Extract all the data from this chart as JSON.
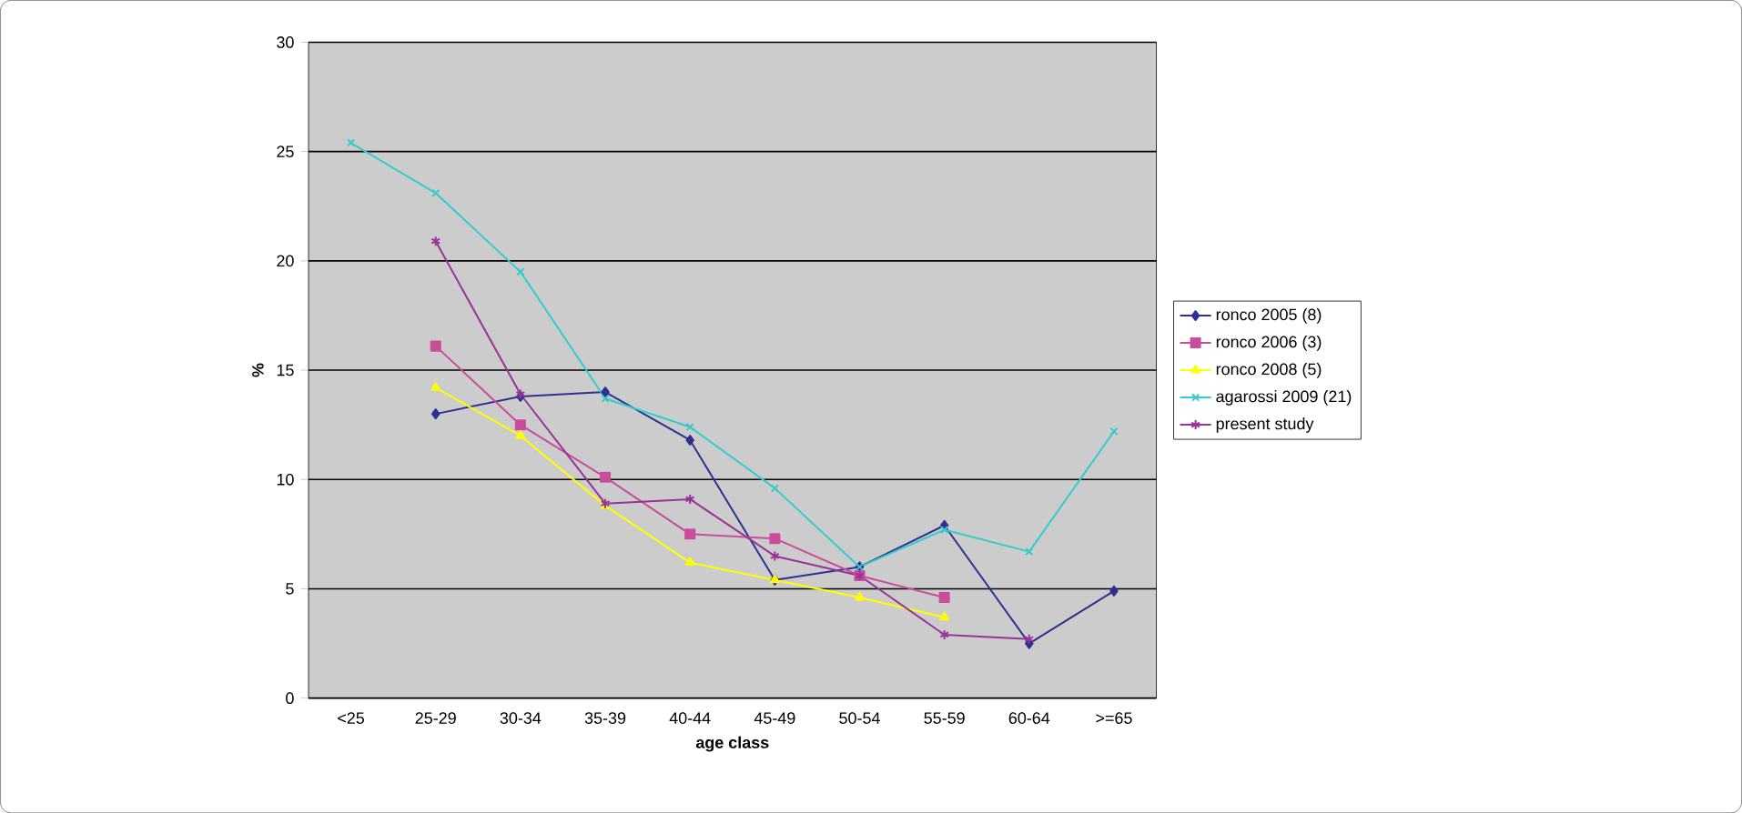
{
  "chart_data": {
    "type": "line",
    "xlabel": "age class",
    "ylabel": "%",
    "categories": [
      "<25",
      "25-29",
      "30-34",
      "35-39",
      "40-44",
      "45-49",
      "50-54",
      "55-59",
      "60-64",
      ">=65"
    ],
    "ylim": [
      0,
      30
    ],
    "yticks": [
      0,
      5,
      10,
      15,
      20,
      25,
      30
    ],
    "grid": "y",
    "legend": "right",
    "series": [
      {
        "name": "ronco 2005 (8)",
        "color": "#2e3192",
        "marker": "diamond",
        "values": [
          null,
          13.0,
          13.8,
          14.0,
          11.8,
          5.4,
          6.0,
          7.9,
          2.5,
          4.9
        ]
      },
      {
        "name": "ronco 2006 (3)",
        "color": "#cc4c9c",
        "marker": "square",
        "values": [
          null,
          16.1,
          12.5,
          10.1,
          7.5,
          7.3,
          5.6,
          4.6,
          null,
          null
        ]
      },
      {
        "name": "ronco 2008 (5)",
        "color": "#ffff00",
        "marker": "triangle",
        "values": [
          null,
          14.2,
          12.0,
          8.8,
          6.2,
          5.4,
          4.6,
          3.7,
          null,
          null
        ]
      },
      {
        "name": "agarossi 2009 (21)",
        "color": "#33cccc",
        "marker": "cross",
        "values": [
          25.4,
          23.1,
          19.5,
          13.7,
          12.4,
          9.6,
          6.0,
          7.7,
          6.7,
          12.2
        ]
      },
      {
        "name": "present study",
        "color": "#993399",
        "marker": "cross",
        "values": [
          null,
          20.9,
          13.9,
          8.9,
          9.1,
          6.5,
          5.6,
          2.9,
          2.7,
          null
        ]
      }
    ]
  }
}
